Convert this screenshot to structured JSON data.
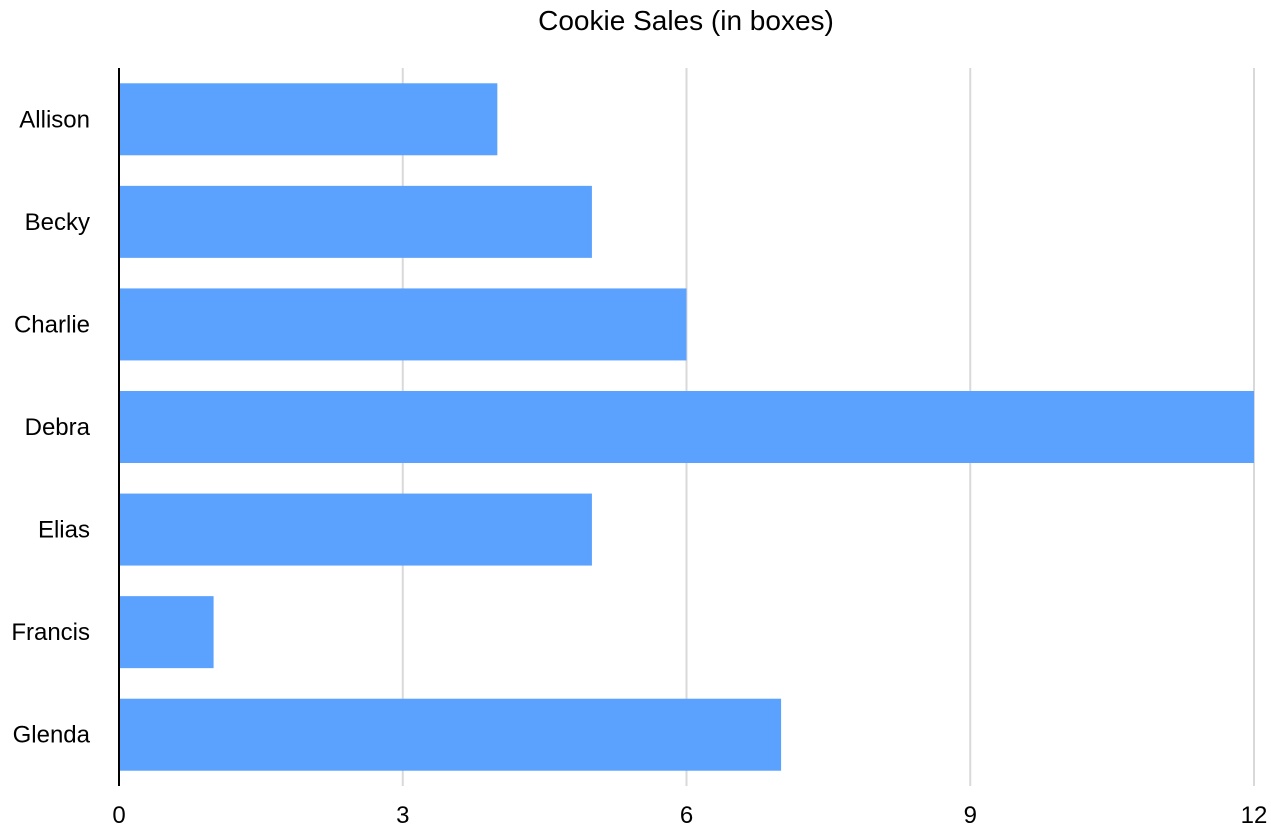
{
  "chart_data": {
    "type": "bar",
    "orientation": "horizontal",
    "title": "Cookie Sales (in boxes)",
    "xlabel": "",
    "ylabel": "",
    "categories": [
      "Allison",
      "Becky",
      "Charlie",
      "Debra",
      "Elias",
      "Francis",
      "Glenda"
    ],
    "values": [
      4,
      5,
      6,
      12,
      5,
      1,
      7
    ],
    "xlim": [
      0,
      12
    ],
    "x_ticks": [
      0,
      3,
      6,
      9,
      12
    ],
    "grid": "vertical",
    "legend": "none",
    "bar_color": "#5ba1fe"
  }
}
